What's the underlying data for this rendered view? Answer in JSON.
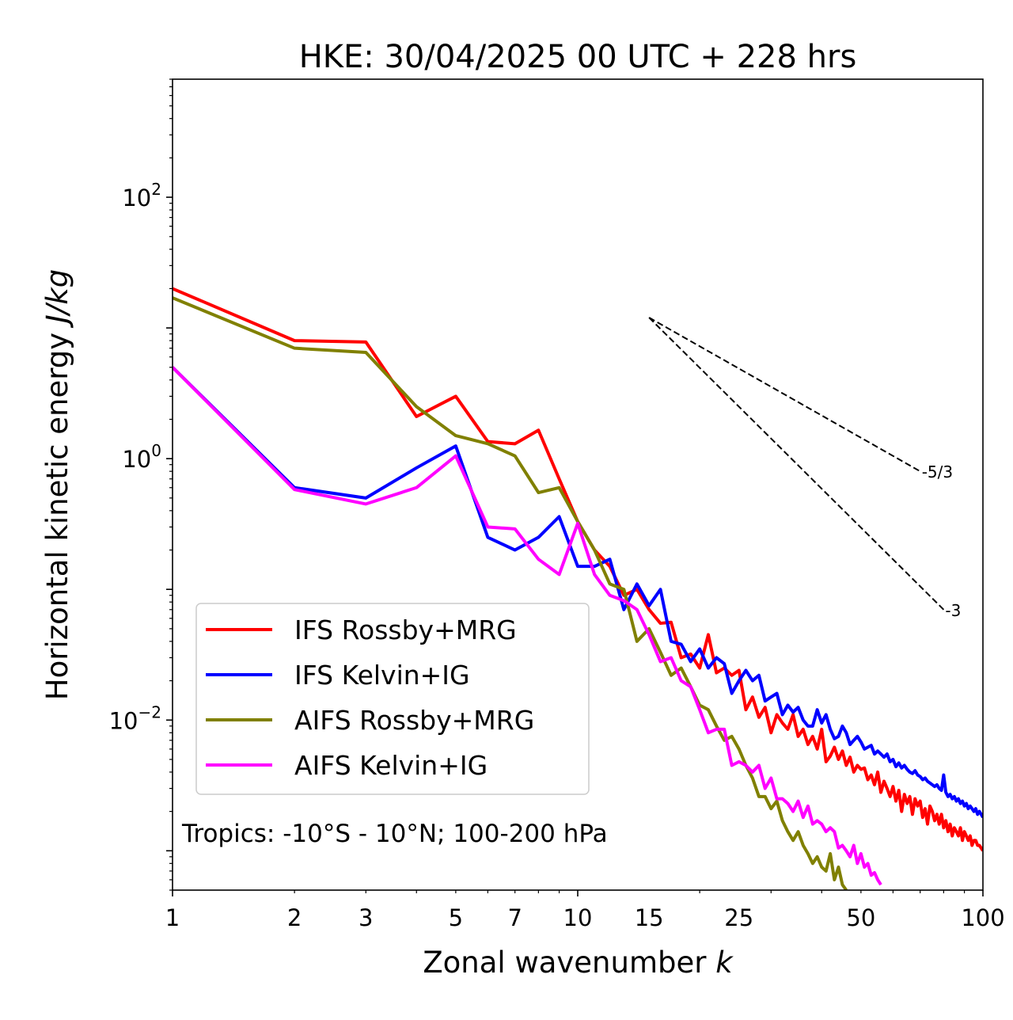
{
  "chart_data": {
    "type": "line",
    "title": "HKE: 30/04/2025 00 UTC + 228 hrs",
    "xlabel": "Zonal wavenumber ",
    "xlabel_italic": "k",
    "ylabel": "Horizontal kinetic energy ",
    "ylabel_italic": "J/kg",
    "xscale": "log",
    "yscale": "log",
    "xlim": [
      1,
      100
    ],
    "ylim": [
      0.0005,
      800
    ],
    "x_ticks": [
      1,
      2,
      3,
      5,
      7,
      10,
      15,
      25,
      50,
      100
    ],
    "x_tick_labels": [
      "1",
      "2",
      "3",
      "5",
      "7",
      "10",
      "15",
      "25",
      "50",
      "100"
    ],
    "y_ticks": [
      0.01,
      1,
      100
    ],
    "y_tick_labels": [
      {
        "base": "10",
        "exp": "−2"
      },
      {
        "base": "10",
        "exp": "0"
      },
      {
        "base": "10",
        "exp": "2"
      }
    ],
    "grid": false,
    "legend_position": "lower-left",
    "annotation": "Tropics: -10°S - 10°N; 100-200 hPa",
    "reference_lines": [
      {
        "label": "-5/3",
        "x": [
          15,
          70
        ],
        "y": [
          12,
          0.8
        ]
      },
      {
        "label": "-3",
        "x": [
          15,
          80
        ],
        "y": [
          12,
          0.07
        ]
      }
    ],
    "series": [
      {
        "name": "IFS Rossby+MRG",
        "color": "#ff0000",
        "x": [
          1,
          2,
          3,
          4,
          5,
          6,
          7,
          8,
          9,
          10,
          11,
          12,
          13,
          14,
          15,
          16,
          17,
          18,
          19,
          20,
          21,
          22,
          23,
          24,
          25,
          26,
          27,
          28,
          29,
          30,
          31,
          32,
          33,
          34,
          35,
          36,
          37,
          38,
          39,
          40,
          41,
          42,
          43,
          44,
          45,
          46,
          47,
          48,
          49,
          50,
          51,
          52,
          53,
          54,
          55,
          56,
          57,
          58,
          59,
          60,
          61,
          62,
          63,
          64,
          65,
          66,
          67,
          68,
          69,
          70,
          71,
          72,
          73,
          74,
          75,
          76,
          77,
          78,
          79,
          80,
          81,
          82,
          83,
          84,
          85,
          86,
          87,
          88,
          89,
          90,
          91,
          92,
          93,
          94,
          95,
          96,
          97,
          98,
          99,
          100
        ],
        "y": [
          20,
          8,
          7.8,
          2.1,
          3,
          1.35,
          1.3,
          1.65,
          0.7,
          0.33,
          0.2,
          0.15,
          0.09,
          0.1,
          0.07,
          0.055,
          0.056,
          0.03,
          0.032,
          0.025,
          0.045,
          0.023,
          0.025,
          0.022,
          0.024,
          0.012,
          0.015,
          0.0105,
          0.0125,
          0.008,
          0.011,
          0.0095,
          0.0085,
          0.011,
          0.0075,
          0.0085,
          0.0065,
          0.0075,
          0.006,
          0.0085,
          0.0048,
          0.0053,
          0.0062,
          0.005,
          0.0058,
          0.0045,
          0.0052,
          0.004,
          0.0045,
          0.0042,
          0.0043,
          0.0035,
          0.0038,
          0.0032,
          0.004,
          0.0028,
          0.0034,
          0.003,
          0.0026,
          0.0031,
          0.0024,
          0.0029,
          0.002,
          0.0027,
          0.0023,
          0.0026,
          0.0019,
          0.0025,
          0.0022,
          0.0024,
          0.0018,
          0.0021,
          0.0016,
          0.0022,
          0.002,
          0.0017,
          0.0019,
          0.0016,
          0.0019,
          0.0015,
          0.0017,
          0.0014,
          0.0016,
          0.0013,
          0.0015,
          0.0014,
          0.0013,
          0.0015,
          0.0012,
          0.0014,
          0.0013,
          0.0012,
          0.0013,
          0.0011,
          0.0012,
          0.0012,
          0.0011,
          0.0011,
          0.00105,
          0.001
        ]
      },
      {
        "name": "IFS Kelvin+IG",
        "color": "#0000ff",
        "x": [
          1,
          2,
          3,
          4,
          5,
          6,
          7,
          8,
          9,
          10,
          11,
          12,
          13,
          14,
          15,
          16,
          17,
          18,
          19,
          20,
          21,
          22,
          23,
          24,
          25,
          26,
          27,
          28,
          29,
          30,
          31,
          32,
          33,
          34,
          35,
          36,
          37,
          38,
          39,
          40,
          41,
          42,
          43,
          44,
          45,
          46,
          47,
          48,
          49,
          50,
          51,
          52,
          53,
          54,
          55,
          56,
          57,
          58,
          59,
          60,
          61,
          62,
          63,
          64,
          65,
          66,
          67,
          68,
          69,
          70,
          71,
          72,
          73,
          74,
          75,
          76,
          77,
          78,
          79,
          80,
          81,
          82,
          83,
          84,
          85,
          86,
          87,
          88,
          89,
          90,
          91,
          92,
          93,
          94,
          95,
          96,
          97,
          98,
          99,
          100
        ],
        "y": [
          5,
          0.6,
          0.5,
          0.85,
          1.25,
          0.25,
          0.2,
          0.25,
          0.36,
          0.15,
          0.15,
          0.17,
          0.07,
          0.11,
          0.075,
          0.1,
          0.04,
          0.038,
          0.028,
          0.035,
          0.025,
          0.03,
          0.027,
          0.016,
          0.02,
          0.024,
          0.02,
          0.022,
          0.014,
          0.015,
          0.016,
          0.011,
          0.013,
          0.0115,
          0.0125,
          0.01,
          0.009,
          0.009,
          0.012,
          0.0095,
          0.011,
          0.0085,
          0.0072,
          0.0075,
          0.009,
          0.008,
          0.0065,
          0.007,
          0.0075,
          0.0068,
          0.006,
          0.0062,
          0.0064,
          0.0055,
          0.0058,
          0.0055,
          0.0052,
          0.0055,
          0.0048,
          0.005,
          0.0044,
          0.0047,
          0.0043,
          0.0045,
          0.0042,
          0.004,
          0.0039,
          0.0041,
          0.0038,
          0.0037,
          0.0035,
          0.0036,
          0.0034,
          0.0033,
          0.0032,
          0.0031,
          0.0032,
          0.003,
          0.0029,
          0.0038,
          0.0028,
          0.0026,
          0.0027,
          0.0025,
          0.0026,
          0.0024,
          0.0025,
          0.0023,
          0.0024,
          0.0022,
          0.0023,
          0.0021,
          0.0022,
          0.0021,
          0.002,
          0.0021,
          0.0019,
          0.002,
          0.0019,
          0.0018
        ]
      },
      {
        "name": "AIFS Rossby+MRG",
        "color": "#808000",
        "x": [
          1,
          2,
          3,
          4,
          5,
          6,
          7,
          8,
          9,
          10,
          11,
          12,
          13,
          14,
          15,
          16,
          17,
          18,
          19,
          20,
          21,
          22,
          23,
          24,
          25,
          26,
          27,
          28,
          29,
          30,
          31,
          32,
          33,
          34,
          35,
          36,
          37,
          38,
          39,
          40,
          41,
          42,
          43,
          44,
          45,
          46
        ],
        "y": [
          17,
          7,
          6.5,
          2.5,
          1.5,
          1.3,
          1.05,
          0.55,
          0.6,
          0.33,
          0.2,
          0.11,
          0.1,
          0.04,
          0.05,
          0.033,
          0.022,
          0.025,
          0.018,
          0.013,
          0.012,
          0.009,
          0.007,
          0.0075,
          0.006,
          0.0045,
          0.0036,
          0.0026,
          0.0026,
          0.0021,
          0.0024,
          0.0017,
          0.0014,
          0.0012,
          0.0014,
          0.0011,
          0.00095,
          0.0008,
          0.0009,
          0.00075,
          0.0007,
          0.00095,
          0.0006,
          0.00075,
          0.00055,
          0.0005
        ]
      },
      {
        "name": "AIFS Kelvin+IG",
        "color": "#ff00ff",
        "x": [
          1,
          2,
          3,
          4,
          5,
          6,
          7,
          8,
          9,
          10,
          11,
          12,
          13,
          14,
          15,
          16,
          17,
          18,
          19,
          20,
          21,
          22,
          23,
          24,
          25,
          26,
          27,
          28,
          29,
          30,
          31,
          32,
          33,
          34,
          35,
          36,
          37,
          38,
          39,
          40,
          41,
          42,
          43,
          44,
          45,
          46,
          47,
          48,
          49,
          50,
          51,
          52,
          53,
          54,
          55,
          56
        ],
        "y": [
          5,
          0.58,
          0.45,
          0.6,
          1.05,
          0.3,
          0.29,
          0.17,
          0.13,
          0.32,
          0.13,
          0.09,
          0.082,
          0.07,
          0.045,
          0.028,
          0.03,
          0.02,
          0.018,
          0.012,
          0.008,
          0.0085,
          0.0085,
          0.0045,
          0.0048,
          0.0045,
          0.004,
          0.0045,
          0.003,
          0.0036,
          0.0025,
          0.0025,
          0.0023,
          0.002,
          0.0024,
          0.0018,
          0.0022,
          0.0016,
          0.0017,
          0.0016,
          0.0014,
          0.0015,
          0.0014,
          0.00105,
          0.0011,
          0.001,
          0.0009,
          0.0011,
          0.0008,
          0.00095,
          0.00075,
          0.0008,
          0.00065,
          0.00068,
          0.0006,
          0.00055
        ]
      }
    ]
  }
}
